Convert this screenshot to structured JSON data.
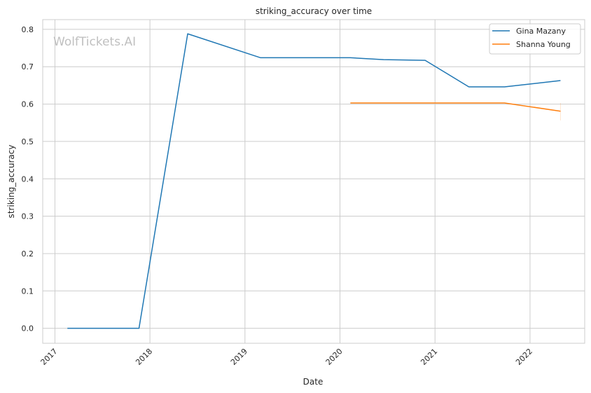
{
  "watermark": "WolfTickets.AI",
  "chart_data": {
    "type": "line",
    "title": "striking_accuracy over time",
    "xlabel": "Date",
    "ylabel": "striking_accuracy",
    "xlim": [
      "2016-11-15",
      "2022-07-30"
    ],
    "ylim": [
      -0.04,
      0.826
    ],
    "x_ticks": [
      "2017",
      "2018",
      "2019",
      "2020",
      "2021",
      "2022"
    ],
    "y_ticks": [
      "0.0",
      "0.1",
      "0.2",
      "0.3",
      "0.4",
      "0.5",
      "0.6",
      "0.7",
      "0.8"
    ],
    "grid": true,
    "legend_position": "top-right",
    "series": [
      {
        "name": "Gina Mazany",
        "color": "#1f77b4",
        "x": [
          "2017-02-18",
          "2017-11-20",
          "2018-05-26",
          "2019-03-02",
          "2020-02-10",
          "2020-06-17",
          "2020-11-24",
          "2021-05-11",
          "2021-09-25",
          "2022-04-28"
        ],
        "y": [
          0.0,
          0.0,
          0.788,
          0.724,
          0.724,
          0.719,
          0.717,
          0.646,
          0.646,
          0.663
        ]
      },
      {
        "name": "Shanna Young",
        "color": "#ff7f0e",
        "x": [
          "2020-02-10",
          "2021-09-25",
          "2022-04-28"
        ],
        "y": [
          0.603,
          0.603,
          0.581
        ]
      }
    ]
  }
}
